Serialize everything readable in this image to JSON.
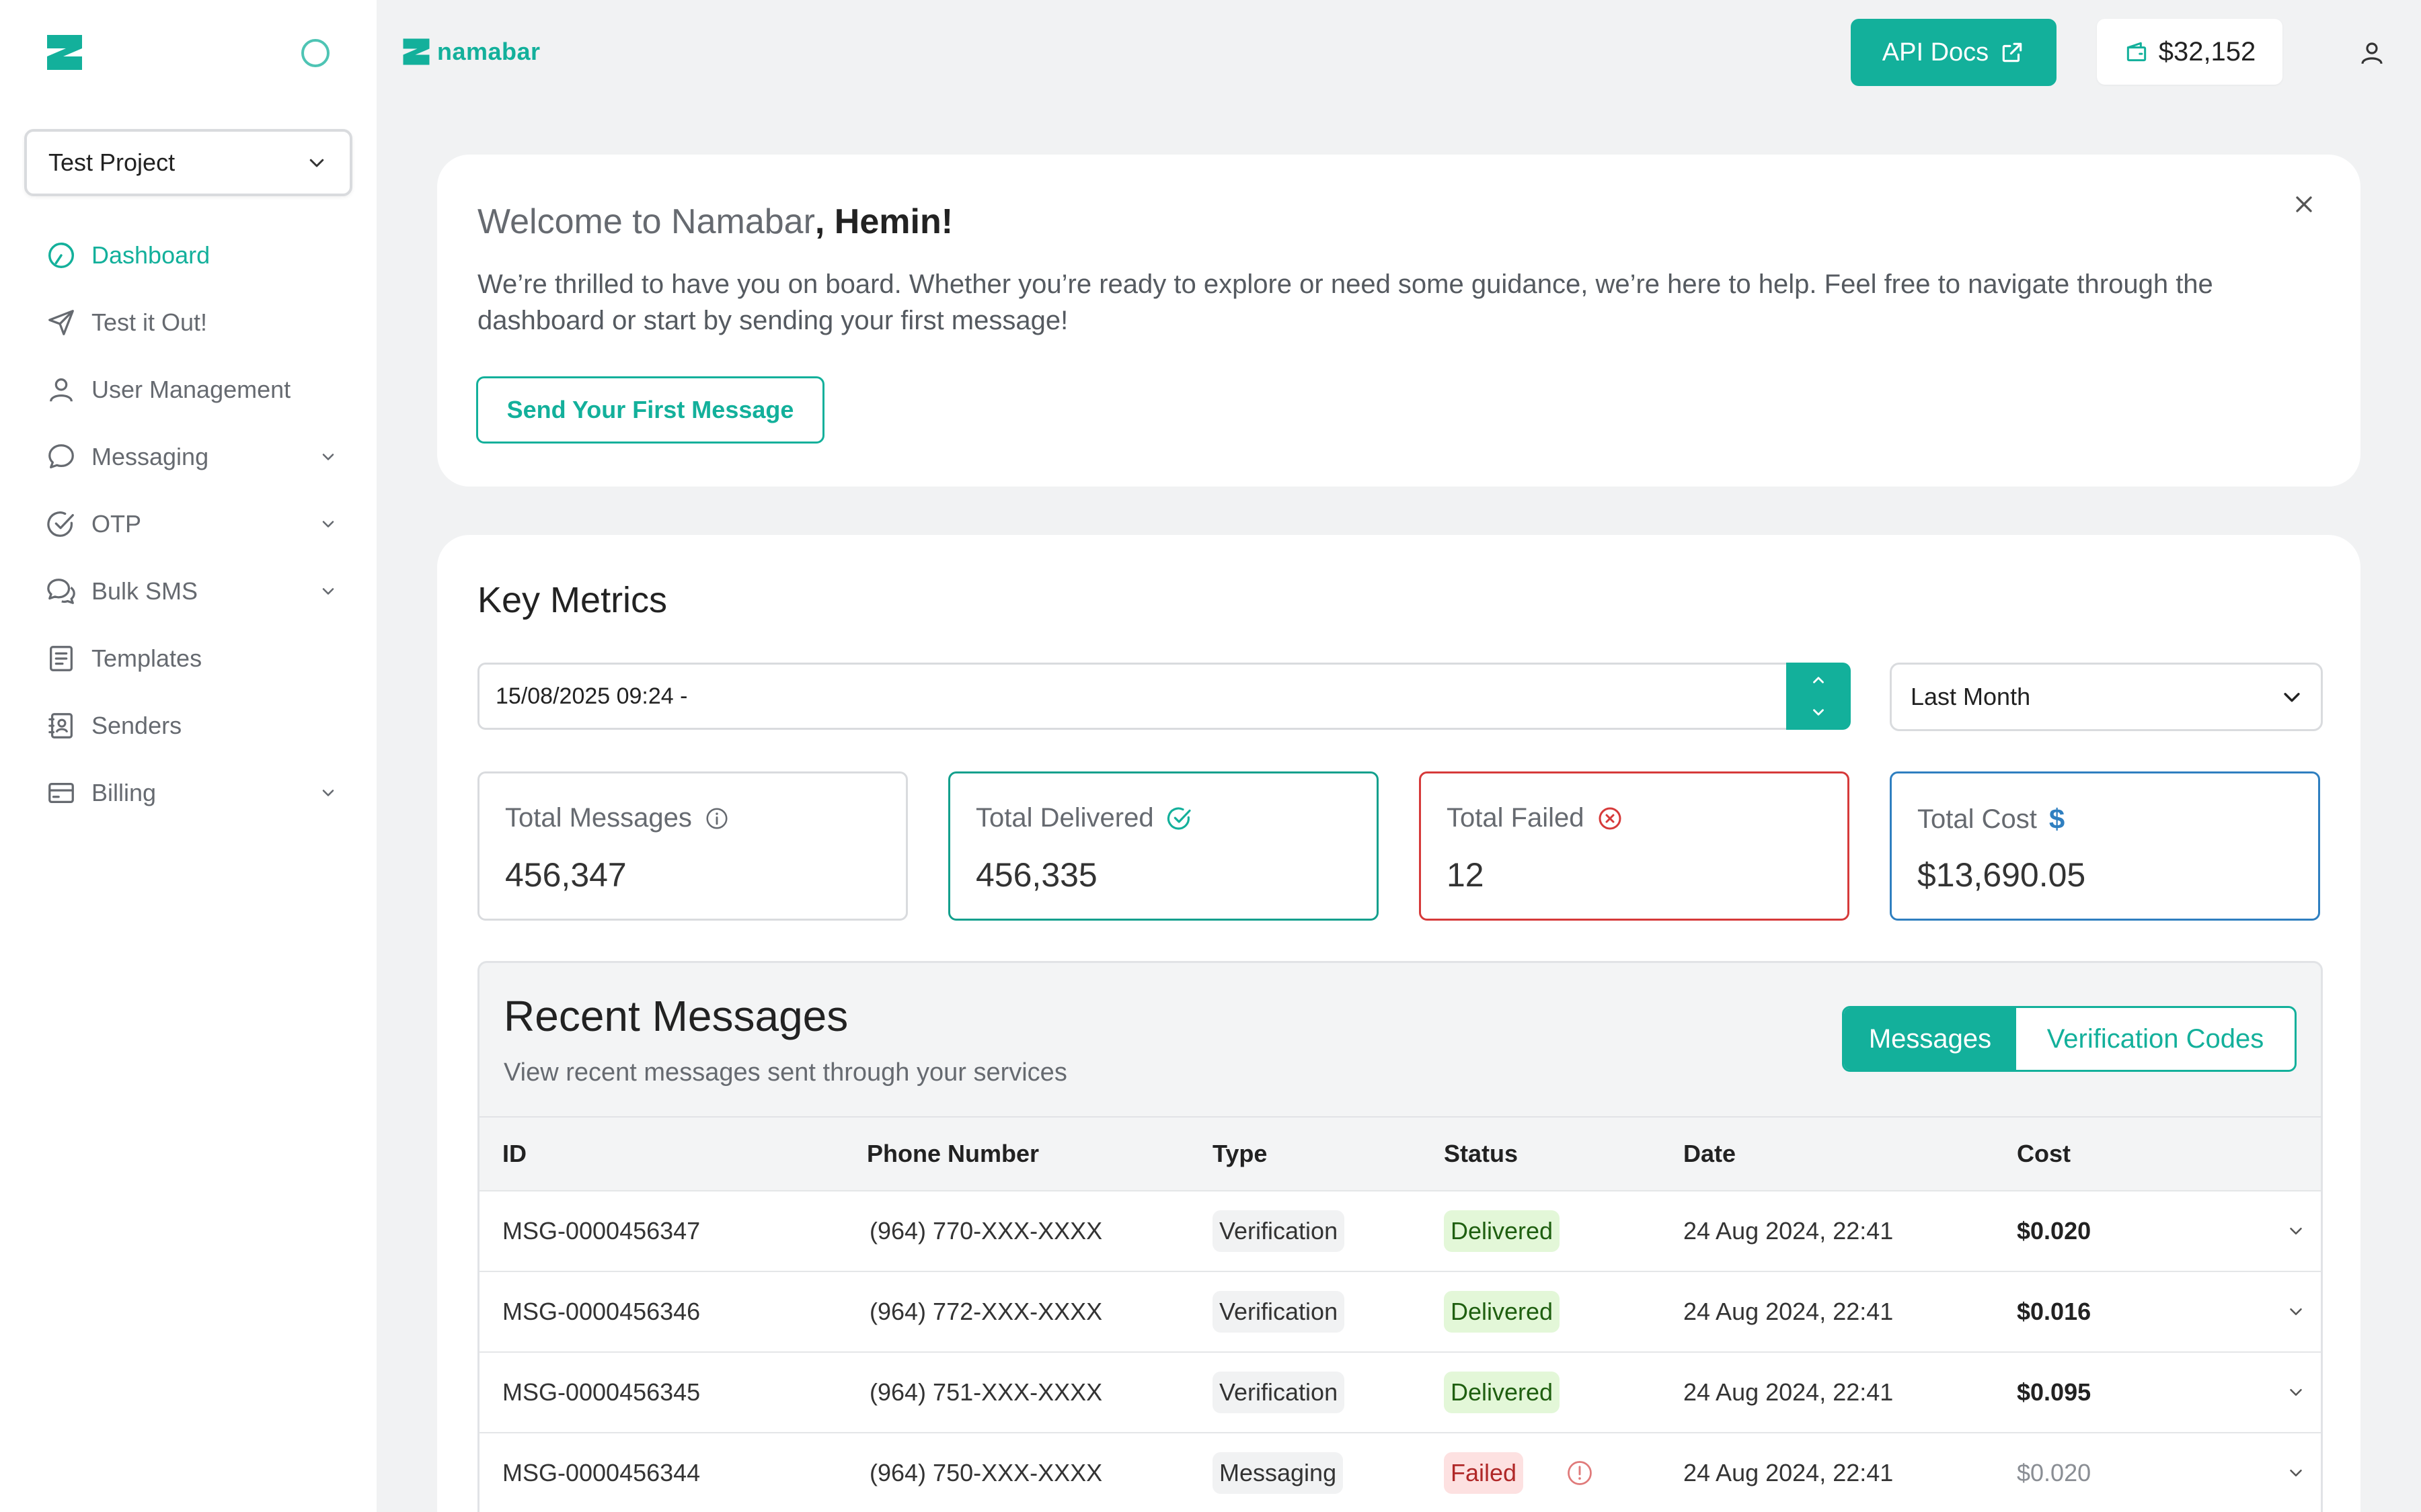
{
  "sidebar": {
    "project": "Test Project",
    "items": [
      {
        "label": "Dashboard"
      },
      {
        "label": "Test it Out!"
      },
      {
        "label": "User Management"
      },
      {
        "label": "Messaging"
      },
      {
        "label": "OTP"
      },
      {
        "label": "Bulk SMS"
      },
      {
        "label": "Templates"
      },
      {
        "label": "Senders"
      },
      {
        "label": "Billing"
      }
    ]
  },
  "header": {
    "brand": "namabar",
    "api_docs": "API Docs",
    "balance": "$32,152"
  },
  "welcome": {
    "title_prefix": "Welcome to Namabar",
    "title_name": ", Hemin!",
    "description": "We’re thrilled to have you on board. Whether you’re ready to explore or need some guidance, we’re here to help. Feel free to navigate through the dashboard or start by sending your first message!",
    "cta": "Send Your First Message"
  },
  "metrics": {
    "title": "Key Metrics",
    "date_value": "15/08/2025 09:24 -",
    "range": "Last Month",
    "stats": [
      {
        "label": "Total Messages",
        "value": "456,347"
      },
      {
        "label": "Total Delivered",
        "value": "456,335"
      },
      {
        "label": "Total Failed",
        "value": "12"
      },
      {
        "label": "Total Cost",
        "value": "$13,690.05"
      }
    ]
  },
  "recent": {
    "title": "Recent Messages",
    "subtitle": "View recent messages sent through your services",
    "tabs": [
      "Messages",
      "Verification Codes"
    ],
    "columns": [
      "ID",
      "Phone Number",
      "Type",
      "Status",
      "Date",
      "Cost"
    ],
    "rows": [
      {
        "id": "MSG-0000456347",
        "phone": "(964) 770-XXX-XXXX",
        "type": "Verification",
        "status": "Delivered",
        "date": "24 Aug 2024, 22:41",
        "cost": "$0.020"
      },
      {
        "id": "MSG-0000456346",
        "phone": "(964) 772-XXX-XXXX",
        "type": "Verification",
        "status": "Delivered",
        "date": "24 Aug 2024, 22:41",
        "cost": "$0.016"
      },
      {
        "id": "MSG-0000456345",
        "phone": "(964) 751-XXX-XXXX",
        "type": "Verification",
        "status": "Delivered",
        "date": "24 Aug 2024, 22:41",
        "cost": "$0.095"
      },
      {
        "id": "MSG-0000456344",
        "phone": "(964) 750-XXX-XXXX",
        "type": "Messaging",
        "status": "Failed",
        "date": "24 Aug 2024, 22:41",
        "cost": "$0.020"
      }
    ]
  },
  "colors": {
    "accent": "#13b09b",
    "failed": "#d63a3a",
    "cost": "#2f7fc0"
  }
}
